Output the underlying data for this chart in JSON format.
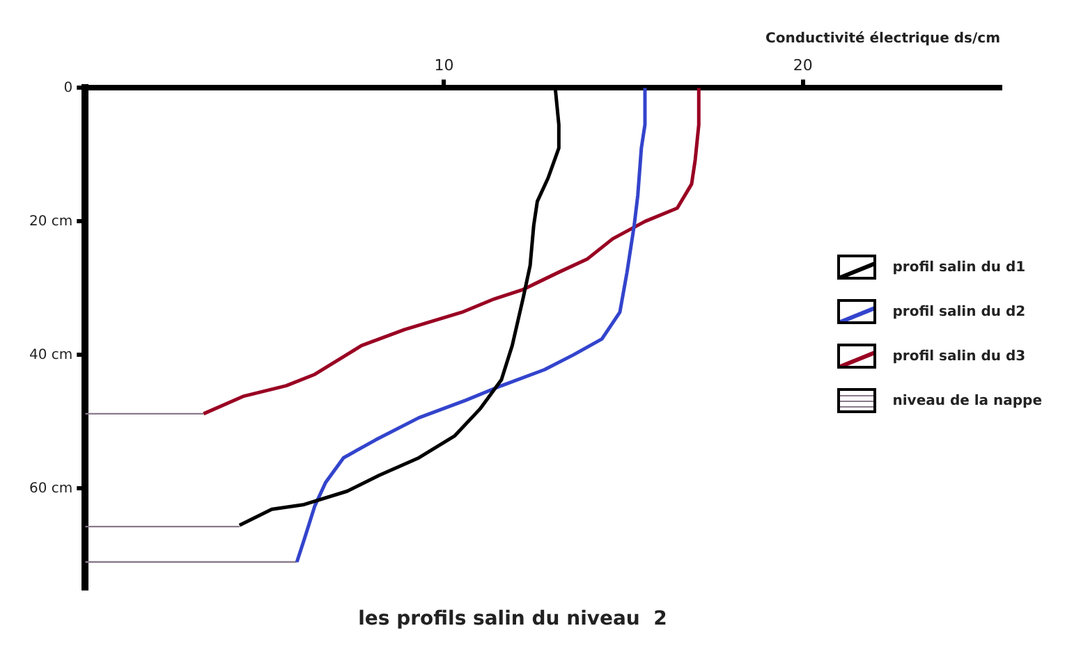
{
  "chart_data": {
    "type": "line",
    "title": "les profils salin du niveau  2",
    "xlabel": "Conductivité électrique ds/cm",
    "xlim": [
      0,
      25.5
    ],
    "xticks": [
      10,
      20
    ],
    "ylim": [
      75,
      0
    ],
    "yticks": [
      0,
      {
        "value": 20,
        "label": "20 cm"
      },
      {
        "value": 40,
        "label": "40 cm"
      },
      {
        "value": 60,
        "label": "60 cm"
      }
    ],
    "grid": false,
    "legend": "right",
    "marker": "none",
    "line_style": "solid",
    "series": [
      {
        "name": "profil salin du d1",
        "color": "#000000",
        "x": [
          13.1,
          13.2,
          13.2,
          12.9,
          12.6,
          12.5,
          12.4,
          12.2,
          11.9,
          11.6,
          11.0,
          10.3,
          9.3,
          8.2,
          7.3,
          6.1,
          5.2,
          4.3
        ],
        "values": [
          0,
          5.5,
          9,
          13.5,
          17,
          20.6,
          26.6,
          31.6,
          38.6,
          43.7,
          48.1,
          52.1,
          55.4,
          58,
          60.4,
          62.4,
          63.1,
          65.5
        ]
      },
      {
        "name": "profil salin du d2",
        "color": "#3344cc",
        "x": [
          15.6,
          15.6,
          15.5,
          15.4,
          15.3,
          15.1,
          14.9,
          14.4,
          13.6,
          12.8,
          11.6,
          10.6,
          9.3,
          8.1,
          7.2,
          6.7,
          6.4,
          6.1,
          5.9
        ],
        "values": [
          0,
          5.5,
          9,
          16.1,
          20.6,
          27.6,
          33.6,
          37.6,
          40,
          42.2,
          44.6,
          46.8,
          49.4,
          52.7,
          55.4,
          59.1,
          62.6,
          67.7,
          71
        ]
      },
      {
        "name": "profil salin du d3",
        "color": "#990022",
        "x": [
          17.1,
          17.1,
          17.0,
          16.9,
          16.5,
          15.6,
          14.7,
          14.0,
          13.2,
          12.2,
          11.4,
          10.5,
          8.9,
          7.7,
          6.4,
          5.6,
          4.4,
          3.3
        ],
        "values": [
          0,
          5.5,
          10.8,
          14.4,
          18,
          20,
          22.6,
          25.6,
          27.6,
          30.2,
          31.6,
          33.6,
          36.2,
          38.6,
          42.9,
          44.6,
          46.2,
          48.8
        ]
      },
      {
        "name": "niveau de la nappe",
        "color": "#8a7a8a",
        "x": [
          0,
          4.3,
          null,
          0,
          5.9,
          null,
          0,
          3.3
        ],
        "values": [
          65.7,
          65.7,
          null,
          71,
          71,
          null,
          48.8,
          48.8
        ]
      }
    ]
  }
}
